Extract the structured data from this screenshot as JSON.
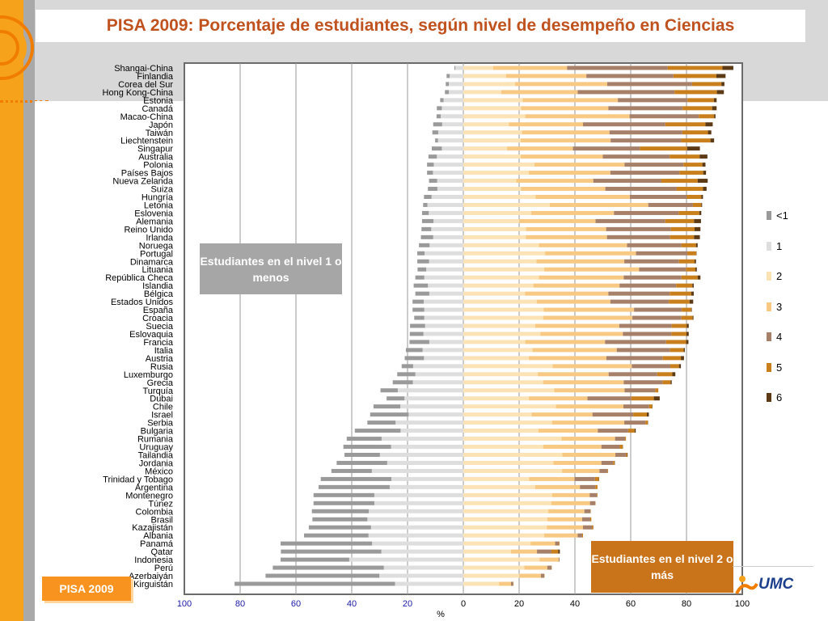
{
  "title": "PISA 2009: Porcentaje de estudiantes, según nivel de desempeño en Ciencias",
  "callouts": {
    "low": "Estudiantes en el nivel 1 o menos",
    "high": "Estudiantes en el nivel 2 o más"
  },
  "badge": "PISA 2009",
  "logo_text": "UMC",
  "colors": {
    "accent_orange": "#f7a21b",
    "title": "#c0521f",
    "axis_blue": "#1a1aa6"
  },
  "chart_data": {
    "type": "bar",
    "orientation": "horizontal",
    "stacking": "diverging",
    "xlabel": "%",
    "xticks": [
      {
        "label": "100",
        "value": -100
      },
      {
        "label": "80",
        "value": -80
      },
      {
        "label": "60",
        "value": -60
      },
      {
        "label": "40",
        "value": -40
      },
      {
        "label": "20",
        "value": -20
      },
      {
        "label": "0",
        "value": 0
      },
      {
        "label": "20",
        "value": 20
      },
      {
        "label": "40",
        "value": 40
      },
      {
        "label": "60",
        "value": 60
      },
      {
        "label": "80",
        "value": 80
      },
      {
        "label": "100",
        "value": 100
      }
    ],
    "xlim": [
      -100,
      100
    ],
    "grid": true,
    "legend_position": "right",
    "legend": [
      {
        "label": "<1",
        "color": "#9a9a9a"
      },
      {
        "label": "1",
        "color": "#dedede"
      },
      {
        "label": "2",
        "color": "#fbe3b6"
      },
      {
        "label": "3",
        "color": "#f7c983"
      },
      {
        "label": "4",
        "color": "#a78069"
      },
      {
        "label": "5",
        "color": "#c9801c"
      },
      {
        "label": "6",
        "color": "#5c3a16"
      }
    ],
    "series": [
      {
        "name": "<1",
        "color": "#9a9a9a"
      },
      {
        "name": "1",
        "color": "#dedede"
      },
      {
        "name": "2",
        "color": "#fbe3b6"
      },
      {
        "name": "3",
        "color": "#f7c983"
      },
      {
        "name": "4",
        "color": "#a78069"
      },
      {
        "name": "5",
        "color": "#c9801c"
      },
      {
        "name": "6",
        "color": "#5c3a16"
      }
    ],
    "countries": [
      {
        "name": "Shangai-China",
        "values": [
          0.3,
          2.9,
          10.7,
          26.5,
          36.1,
          19.6,
          3.9
        ]
      },
      {
        "name": "Finlandia",
        "values": [
          1.1,
          4.9,
          15.3,
          28.8,
          31.2,
          15.4,
          3.3
        ]
      },
      {
        "name": "Corea del Sur",
        "values": [
          1.1,
          5.2,
          18.5,
          33.1,
          30.4,
          10.5,
          1.1
        ]
      },
      {
        "name": "Hong Kong-China",
        "values": [
          1.4,
          5.2,
          13.6,
          27.4,
          34.7,
          15.2,
          2.5
        ]
      },
      {
        "name": "Estonia",
        "values": [
          1.2,
          7.1,
          21.3,
          34.1,
          25.0,
          9.4,
          1.0
        ]
      },
      {
        "name": "Canadá",
        "values": [
          1.8,
          7.7,
          20.7,
          31.3,
          26.6,
          10.6,
          1.6
        ]
      },
      {
        "name": "Macao-China",
        "values": [
          1.5,
          8.1,
          22.2,
          37.4,
          24.8,
          5.5,
          0.5
        ]
      },
      {
        "name": "Japón",
        "values": [
          3.2,
          7.6,
          16.3,
          26.6,
          29.5,
          14.4,
          2.6
        ]
      },
      {
        "name": "Taiwán",
        "values": [
          2.1,
          9.0,
          21.0,
          31.4,
          26.1,
          9.2,
          1.2
        ]
      },
      {
        "name": "Liechtenstein",
        "values": [
          1.0,
          9.1,
          20.5,
          32.3,
          25.3,
          10.5,
          1.3
        ]
      },
      {
        "name": "Singapur",
        "values": [
          3.6,
          7.7,
          15.7,
          23.6,
          24.0,
          16.9,
          4.6
        ]
      },
      {
        "name": "Australia",
        "values": [
          3.0,
          9.5,
          20.6,
          29.4,
          24.0,
          10.7,
          2.8
        ]
      },
      {
        "name": "Polonia",
        "values": [
          2.4,
          10.6,
          25.5,
          32.3,
          21.1,
          6.8,
          1.1
        ]
      },
      {
        "name": "Países Bajos",
        "values": [
          2.1,
          10.9,
          23.5,
          29.2,
          24.8,
          8.5,
          1.0
        ]
      },
      {
        "name": "Nueva Zelanda",
        "values": [
          2.9,
          9.4,
          19.0,
          27.6,
          24.4,
          13.0,
          3.6
        ]
      },
      {
        "name": "Suiza",
        "values": [
          3.4,
          9.3,
          20.7,
          30.2,
          25.6,
          9.4,
          1.3
        ]
      },
      {
        "name": "Hungría",
        "values": [
          2.7,
          11.4,
          25.9,
          33.8,
          20.4,
          5.2,
          0.6
        ]
      },
      {
        "name": "Letonia",
        "values": [
          1.5,
          12.9,
          31.0,
          35.3,
          16.0,
          3.0,
          0.3
        ]
      },
      {
        "name": "Eslovenia",
        "values": [
          2.4,
          12.4,
          24.3,
          29.7,
          23.2,
          7.4,
          0.7
        ]
      },
      {
        "name": "Alemania",
        "values": [
          4.1,
          10.7,
          20.1,
          27.3,
          25.0,
          10.3,
          2.5
        ]
      },
      {
        "name": "Reino Unido",
        "values": [
          3.5,
          11.5,
          22.5,
          28.7,
          23.2,
          8.5,
          2.1
        ]
      },
      {
        "name": "Irlanda",
        "values": [
          4.4,
          10.8,
          22.4,
          29.1,
          22.6,
          8.6,
          2.1
        ]
      },
      {
        "name": "Noruega",
        "values": [
          3.8,
          12.1,
          27.1,
          31.6,
          19.5,
          5.2,
          0.6
        ]
      },
      {
        "name": "Portugal",
        "values": [
          2.6,
          13.9,
          29.3,
          32.6,
          18.4,
          3.2,
          0.1
        ]
      },
      {
        "name": "Dinamarca",
        "values": [
          4.2,
          12.3,
          26.2,
          31.5,
          19.6,
          5.6,
          0.5
        ]
      },
      {
        "name": "Lituania",
        "values": [
          3.1,
          13.3,
          29.0,
          34.0,
          16.8,
          3.4,
          0.5
        ]
      },
      {
        "name": "República Checa",
        "values": [
          3.2,
          14.0,
          27.1,
          30.4,
          20.7,
          5.8,
          1.0
        ]
      },
      {
        "name": "Islandia",
        "values": [
          5.1,
          12.7,
          25.1,
          30.9,
          20.3,
          5.8,
          0.5
        ]
      },
      {
        "name": "Bélgica",
        "values": [
          5.0,
          12.2,
          22.1,
          29.9,
          22.0,
          7.7,
          0.9
        ]
      },
      {
        "name": "Estados Unidos",
        "values": [
          4.0,
          14.2,
          26.3,
          26.4,
          21.0,
          7.4,
          1.3
        ]
      },
      {
        "name": "España",
        "values": [
          4.2,
          14.0,
          28.8,
          32.4,
          17.1,
          3.4,
          0.2
        ]
      },
      {
        "name": "Croacia",
        "values": [
          3.6,
          14.0,
          28.6,
          32.0,
          17.6,
          4.0,
          0.3
        ]
      },
      {
        "name": "Suecia",
        "values": [
          5.4,
          13.7,
          25.8,
          30.1,
          18.8,
          5.4,
          0.7
        ]
      },
      {
        "name": "Eslovaquia",
        "values": [
          4.9,
          14.3,
          27.6,
          29.6,
          17.4,
          5.4,
          0.8
        ]
      },
      {
        "name": "Francia",
        "values": [
          7.1,
          12.2,
          22.2,
          28.6,
          21.9,
          7.2,
          0.8
        ]
      },
      {
        "name": "Italia",
        "values": [
          6.0,
          14.6,
          24.8,
          30.2,
          19.1,
          4.9,
          0.4
        ]
      },
      {
        "name": "Austria",
        "values": [
          6.9,
          14.1,
          23.5,
          27.8,
          20.2,
          6.5,
          1.1
        ]
      },
      {
        "name": "Rusia",
        "values": [
          4.1,
          18.0,
          32.0,
          28.4,
          13.8,
          3.1,
          0.7
        ]
      },
      {
        "name": "Luxemburgo",
        "values": [
          6.5,
          17.2,
          26.7,
          25.4,
          17.4,
          5.4,
          1.1
        ]
      },
      {
        "name": "Grecia",
        "values": [
          7.2,
          18.1,
          28.6,
          28.9,
          13.9,
          2.9,
          0.4
        ]
      },
      {
        "name": "Turquía",
        "values": [
          6.2,
          23.5,
          32.6,
          25.2,
          11.0,
          1.1,
          0.0
        ]
      },
      {
        "name": "Dubai",
        "values": [
          6.4,
          21.1,
          23.5,
          21.0,
          15.7,
          8.1,
          2.1
        ]
      },
      {
        "name": "Chile",
        "values": [
          9.6,
          22.6,
          33.2,
          24.2,
          9.2,
          1.1,
          0.1
        ]
      },
      {
        "name": "Israel",
        "values": [
          13.8,
          19.6,
          24.5,
          21.8,
          14.6,
          4.9,
          0.7
        ]
      },
      {
        "name": "Serbia",
        "values": [
          10.1,
          24.3,
          31.8,
          25.9,
          7.6,
          0.8,
          0.1
        ]
      },
      {
        "name": "Bulgaria",
        "values": [
          16.4,
          22.5,
          26.9,
          21.3,
          10.9,
          2.3,
          0.4
        ]
      },
      {
        "name": "Rumania",
        "values": [
          12.5,
          29.3,
          35.2,
          19.2,
          3.6,
          0.3,
          0.0
        ]
      },
      {
        "name": "Uruguay",
        "values": [
          17.1,
          25.9,
          28.6,
          20.9,
          6.6,
          1.0,
          0.1
        ]
      },
      {
        "name": "Tailandia",
        "values": [
          12.7,
          29.9,
          35.5,
          19.0,
          3.8,
          0.4,
          0.2
        ]
      },
      {
        "name": "Jordania",
        "values": [
          18.1,
          27.3,
          32.3,
          17.2,
          4.2,
          0.5,
          0.1
        ]
      },
      {
        "name": "México",
        "values": [
          14.5,
          32.8,
          35.4,
          13.4,
          2.9,
          0.2,
          0.0
        ]
      },
      {
        "name": "Trinidad y Tobago",
        "values": [
          25.3,
          25.8,
          23.6,
          16.3,
          7.3,
          1.4,
          0.1
        ]
      },
      {
        "name": "Argentina",
        "values": [
          25.5,
          26.4,
          25.8,
          16.0,
          5.5,
          0.8,
          0.0
        ]
      },
      {
        "name": "Montenegro",
        "values": [
          21.8,
          31.9,
          31.8,
          13.5,
          2.6,
          0.2,
          0.0
        ]
      },
      {
        "name": "Túnez",
        "values": [
          21.8,
          31.9,
          31.5,
          13.9,
          1.9,
          0.1,
          0.0
        ]
      },
      {
        "name": "Colombia",
        "values": [
          20.4,
          33.9,
          30.4,
          13.0,
          2.2,
          0.1,
          0.0
        ]
      },
      {
        "name": "Brasil",
        "values": [
          19.7,
          34.4,
          30.1,
          12.5,
          2.9,
          0.4,
          0.0
        ]
      },
      {
        "name": "Kazajistán",
        "values": [
          22.3,
          33.1,
          29.9,
          13.0,
          3.2,
          0.4,
          0.1
        ]
      },
      {
        "name": "Albania",
        "values": [
          23.1,
          34.0,
          29.0,
          12.0,
          1.6,
          0.3,
          0.0
        ]
      },
      {
        "name": "Panamá",
        "values": [
          32.8,
          32.7,
          24.1,
          8.8,
          1.4,
          0.2,
          0.0
        ]
      },
      {
        "name": "Qatar",
        "values": [
          36.0,
          29.4,
          17.1,
          9.3,
          5.2,
          2.4,
          0.6
        ]
      },
      {
        "name": "Indonesia",
        "values": [
          24.6,
          40.9,
          27.3,
          6.9,
          0.3,
          0.0,
          0.0
        ]
      },
      {
        "name": "Perú",
        "values": [
          39.8,
          28.5,
          21.9,
          8.2,
          1.5,
          0.1,
          0.0
        ]
      },
      {
        "name": "Azerbaiyán",
        "values": [
          40.8,
          30.1,
          20.1,
          7.7,
          1.2,
          0.1,
          0.0
        ]
      },
      {
        "name": "Kirguistán",
        "values": [
          57.5,
          24.5,
          12.8,
          4.3,
          0.8,
          0.1,
          0.0
        ]
      }
    ]
  }
}
